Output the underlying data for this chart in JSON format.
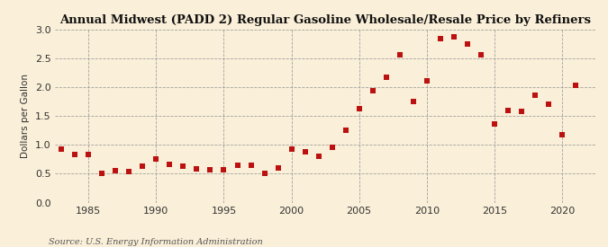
{
  "title": "Annual Midwest (PADD 2) Regular Gasoline Wholesale/Resale Price by Refiners",
  "ylabel": "Dollars per Gallon",
  "source": "Source: U.S. Energy Information Administration",
  "xlim": [
    1982.5,
    2022.5
  ],
  "ylim": [
    0.0,
    3.0
  ],
  "yticks": [
    0.0,
    0.5,
    1.0,
    1.5,
    2.0,
    2.5,
    3.0
  ],
  "xticks": [
    1985,
    1990,
    1995,
    2000,
    2005,
    2010,
    2015,
    2020
  ],
  "background_color": "#faefd8",
  "plot_bg_color": "#faefd8",
  "marker_color": "#bb1111",
  "title_fontsize": 9.5,
  "tick_fontsize": 8,
  "ylabel_fontsize": 7.5,
  "source_fontsize": 7,
  "years": [
    1983,
    1984,
    1985,
    1986,
    1987,
    1988,
    1989,
    1990,
    1991,
    1992,
    1993,
    1994,
    1995,
    1996,
    1997,
    1998,
    1999,
    2000,
    2001,
    2002,
    2003,
    2004,
    2005,
    2006,
    2007,
    2008,
    2009,
    2010,
    2011,
    2012,
    2013,
    2014,
    2015,
    2016,
    2017,
    2018,
    2019,
    2020,
    2021
  ],
  "values": [
    0.92,
    0.84,
    0.84,
    0.5,
    0.55,
    0.53,
    0.63,
    0.76,
    0.66,
    0.63,
    0.59,
    0.57,
    0.57,
    0.64,
    0.64,
    0.5,
    0.6,
    0.93,
    0.88,
    0.8,
    0.96,
    1.26,
    1.63,
    1.94,
    2.17,
    2.56,
    1.75,
    2.11,
    2.85,
    2.87,
    2.75,
    2.56,
    1.36,
    1.6,
    1.58,
    1.87,
    1.7,
    1.17,
    2.03
  ]
}
